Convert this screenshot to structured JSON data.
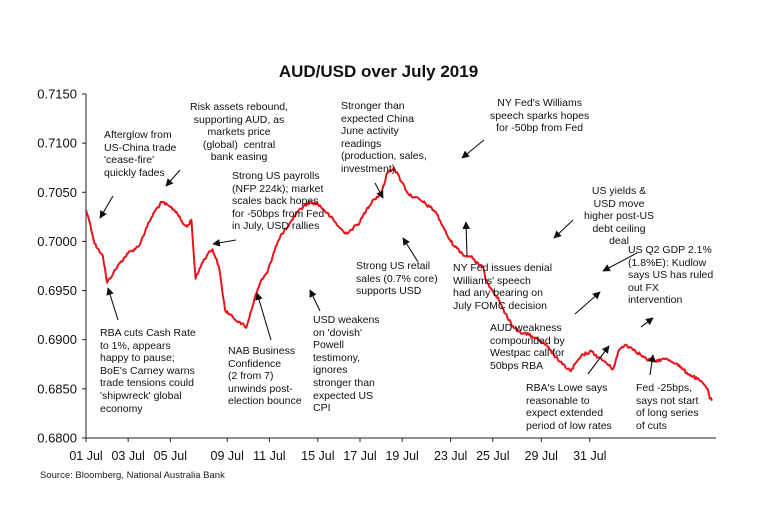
{
  "chart_data": {
    "type": "line",
    "title": "AUD/USD over July 2019",
    "source": "Source: Bloomberg, National Australia Bank",
    "ylim": [
      0.68,
      0.715
    ],
    "y_ticks": [
      "0.6800",
      "0.6850",
      "0.6900",
      "0.6950",
      "0.7000",
      "0.7050",
      "0.7100",
      "0.7150"
    ],
    "x_ticks": [
      "01 Jul",
      "03 Jul",
      "05 Jul",
      "09 Jul",
      "11 Jul",
      "15 Jul",
      "17 Jul",
      "19 Jul",
      "23 Jul",
      "25 Jul",
      "29 Jul",
      "31 Jul"
    ],
    "grid": false,
    "series": [
      {
        "color": "#e8141c",
        "x": [
          0,
          0.2,
          0.4,
          0.6,
          0.8,
          1.0,
          1.3,
          1.6,
          2.0,
          2.5,
          3.0,
          3.3,
          3.6,
          4.0,
          4.3,
          4.6,
          4.8,
          5.0,
          5.2,
          5.5,
          5.8,
          6.0,
          6.3,
          6.6,
          7.0,
          7.3,
          7.6,
          8.0,
          8.3,
          8.6,
          9.0,
          9.3,
          9.6,
          9.8,
          10.0,
          10.3,
          10.6,
          11.0,
          11.3,
          11.6,
          12.0,
          12.3,
          12.6,
          13.0,
          13.3,
          13.6,
          14.0,
          14.3,
          14.6,
          15.0,
          15.3,
          15.6,
          16.0,
          16.3,
          16.6,
          17.0,
          17.3,
          17.6,
          18.0,
          18.3,
          18.5,
          18.8,
          19.0,
          19.3,
          19.6,
          20.0,
          20.3,
          20.6,
          21.0,
          21.3,
          21.6,
          22.0,
          22.3,
          22.6,
          23.0,
          23.3,
          23.6,
          24.0,
          24.3,
          24.6,
          25.0,
          25.3,
          25.6,
          26.0,
          26.3,
          26.6,
          27.0,
          27.3,
          27.6,
          28.0,
          28.3,
          28.6,
          29.0,
          29.3,
          29.5,
          29.6,
          29.7
        ],
        "values": [
          0.7032,
          0.7018,
          0.6998,
          0.6992,
          0.6985,
          0.6958,
          0.6968,
          0.6978,
          0.6988,
          0.6995,
          0.702,
          0.7032,
          0.704,
          0.7035,
          0.703,
          0.7018,
          0.7015,
          0.7022,
          0.6962,
          0.6978,
          0.6988,
          0.6992,
          0.6975,
          0.693,
          0.6922,
          0.6918,
          0.6912,
          0.6942,
          0.696,
          0.6968,
          0.6995,
          0.7008,
          0.7015,
          0.7022,
          0.703,
          0.7035,
          0.704,
          0.7038,
          0.7032,
          0.7025,
          0.7015,
          0.7008,
          0.7012,
          0.702,
          0.7032,
          0.7042,
          0.7048,
          0.707,
          0.7075,
          0.706,
          0.7048,
          0.7045,
          0.704,
          0.7035,
          0.703,
          0.7012,
          0.7,
          0.6993,
          0.6985,
          0.6985,
          0.6978,
          0.6975,
          0.696,
          0.695,
          0.694,
          0.6922,
          0.6912,
          0.6908,
          0.6905,
          0.6902,
          0.6898,
          0.689,
          0.6882,
          0.6875,
          0.6868,
          0.6878,
          0.6885,
          0.6888,
          0.6882,
          0.6878,
          0.687,
          0.689,
          0.6895,
          0.689,
          0.6885,
          0.688,
          0.6878,
          0.688,
          0.688,
          0.6876,
          0.687,
          0.6865,
          0.686,
          0.6855,
          0.685,
          0.684,
          0.6838
        ]
      }
    ],
    "annotations": [
      "Afterglow from\nUS-China trade\n'cease-fire'\nquickly fades",
      "Risk assets rebound,\nsupporting AUD, as\nmarkets price\n(global)  central\nbank easing",
      "Strong US payrolls\n(NFP 224k); market\nscales back hopes\nfor -50bps from Fed\nin July, USD rallies",
      "Stronger than\nexpected China\nJune activity\nreadings\n(production, sales,\ninvestment)",
      "NY Fed's Williams\nspeech sparks hopes\nfor -50bp from Fed",
      "US yields &\nUSD move\nhigher post-US\ndebt ceiling\ndeal",
      "US Q2 GDP 2.1%\n(1.8%E): Kudlow\nsays US has ruled\nout FX\nintervention",
      "Strong US retail\nsales (0.7% core)\nsupports USD",
      "NY Fed issues denial\nWilliams' speech\nhad any bearing on\nJuly FOMC decision",
      "AUD weakness\ncompounded by\nWestpac call for\n50bps RBA",
      "RBA cuts Cash Rate\nto 1%, appears\nhappy to pause;\nBoE's Carney warns\ntrade tensions could\n'shipwreck' global\neconomy",
      "NAB Business\nConfidence\n(2 from 7)\nunwinds post-\nelection bounce",
      "USD weakens\non 'dovish'\nPowell\ntestimony,\nignores\nstronger than\nexpected US\nCPI",
      "RBA's Lowe says\nreasonable to\nexpect extended\nperiod of low rates",
      "Fed -25bps,\nsays not start\nof long series\nof cuts"
    ]
  }
}
